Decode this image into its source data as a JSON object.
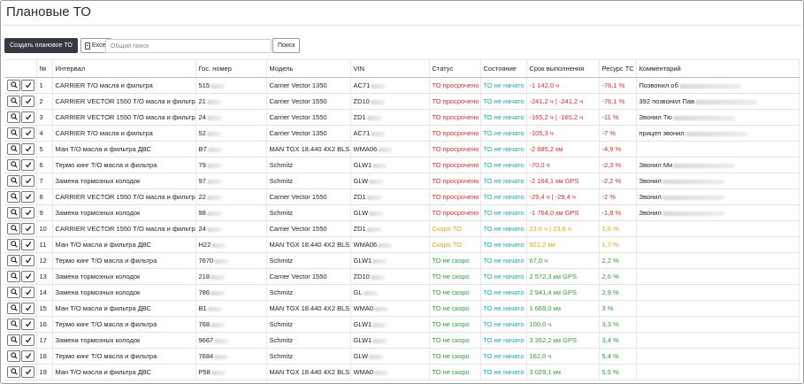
{
  "page": {
    "title": "Плановые ТО"
  },
  "toolbar": {
    "create_label": "Создать плановое ТО",
    "excel_label": "Excel",
    "search_placeholder": "Общий поиск",
    "search_button": "Поиск"
  },
  "table": {
    "headers": [
      "",
      "№",
      "Интервал",
      "Гос. номер",
      "Модель",
      "VIN",
      "Статус",
      "Состояние",
      "Срок выполнения",
      "Ресурс ТС",
      "Комментарий"
    ],
    "rows": [
      {
        "n": "1",
        "interval": "CARRIER Т/О масла и фильтра",
        "plate": "515",
        "model": "Carrier Vector 1350",
        "vin": "AC71",
        "status": "ТО просрочено",
        "status_color": "red",
        "state": "ТО не начато",
        "due": "-1 142,0 ч",
        "resource": "-76,1 %",
        "comment": "Позвонил об"
      },
      {
        "n": "2",
        "interval": "CARRIER VECTOR 1550 Т/О масла и фильтра",
        "plate": "21",
        "model": "Carrier Vector 1550",
        "vin": "ZD10",
        "status": "ТО просрочено",
        "status_color": "red",
        "state": "ТО не начато",
        "due": "-241,2 ч | -241,2 ч",
        "resource": "-76,1 %",
        "comment": "392 позвонил Пав"
      },
      {
        "n": "3",
        "interval": "CARRIER VECTOR 1550 Т/О масла и фильтра",
        "plate": "24",
        "model": "Carrier Vector 1550",
        "vin": "ZD1",
        "status": "ТО просрочено",
        "status_color": "red",
        "state": "ТО не начато",
        "due": "-165,2 ч | -165,2 ч",
        "resource": "-11 %",
        "comment": "Звонил Тю"
      },
      {
        "n": "4",
        "interval": "CARRIER Т/О масла и фильтра",
        "plate": "52",
        "model": "Carrier Vector 1350",
        "vin": "AC71",
        "status": "ТО просрочено",
        "status_color": "red",
        "state": "ТО не начато",
        "due": "-105,3 ч",
        "resource": "-7 %",
        "comment": "прицеп звонил"
      },
      {
        "n": "5",
        "interval": "Ман Т/О масла и фильтра ДВС",
        "plate": "В7",
        "model": "MAN TGX 18.440 4X2 BLS",
        "vin": "WMA06",
        "status": "ТО просрочено",
        "status_color": "red",
        "state": "ТО не начато",
        "due": "-2 685,2 км",
        "resource": "-4,9 %",
        "comment": ""
      },
      {
        "n": "6",
        "interval": "Термо кинг Т/О масла и фильтра",
        "plate": "79",
        "model": "Schmitz",
        "vin": "GLW1",
        "status": "ТО просрочено",
        "status_color": "red",
        "state": "ТО не начато",
        "due": "-70,0 ч",
        "resource": "-2,3 %",
        "comment": "Звонил Ми"
      },
      {
        "n": "7",
        "interval": "Замена тормозных колодок",
        "plate": "97",
        "model": "Schmitz",
        "vin": "GLW",
        "status": "ТО просрочено",
        "status_color": "red",
        "state": "ТО не начато",
        "due": "-2 164,1 км GPS",
        "resource": "-2,2 %",
        "comment": "Звонил"
      },
      {
        "n": "8",
        "interval": "CARRIER VECTOR 1550 Т/О масла и фильтра",
        "plate": "22",
        "model": "Carrier Vector 1550",
        "vin": "ZD1",
        "status": "ТО просрочено",
        "status_color": "red",
        "state": "ТО не начато",
        "due": "-29,4 ч | -29,4 ч",
        "resource": "-2 %",
        "comment": "Звонил"
      },
      {
        "n": "9",
        "interval": "Замена тормозных колодок",
        "plate": "98",
        "model": "Schmitz",
        "vin": "GLW",
        "status": "ТО просрочено",
        "status_color": "red",
        "state": "ТО не начато",
        "due": "-1 764,0 км GPS",
        "resource": "-1,8 %",
        "comment": "Звонил"
      },
      {
        "n": "10",
        "interval": "CARRIER VECTOR 1550 Т/О масла и фильтра",
        "plate": "24",
        "model": "Carrier Vector 1550",
        "vin": "ZD1",
        "status": "Скоро ТО",
        "status_color": "orange",
        "state": "ТО не начато",
        "due": "23,6 ч | 23,6 ч",
        "resource": "1,6 %",
        "comment": ""
      },
      {
        "n": "11",
        "interval": "Ман Т/О масла и фильтра ДВС",
        "plate": "Н22",
        "model": "MAN TGX 18.440 4X2 BLS",
        "vin": "WMA06",
        "status": "Скоро ТО",
        "status_color": "orange",
        "state": "ТО не начато",
        "due": "921,2 км",
        "resource": "1,7 %",
        "comment": ""
      },
      {
        "n": "12",
        "interval": "Термо кинг Т/О масла и фильтра",
        "plate": "7670",
        "model": "Schmitz",
        "vin": "GLW1",
        "status": "ТО не скоро",
        "status_color": "green",
        "state": "ТО не начато",
        "due": "67,0 ч",
        "resource": "2,2 %",
        "comment": ""
      },
      {
        "n": "13",
        "interval": "Замена тормозных колодок",
        "plate": "218",
        "model": "Carrier Vector 1550",
        "vin": "ZD10",
        "status": "ТО не скоро",
        "status_color": "green",
        "state": "ТО не начато",
        "due": "2 572,3 км GPS",
        "resource": "2,6 %",
        "comment": ""
      },
      {
        "n": "14",
        "interval": "Замена тормозных колодок",
        "plate": "786",
        "model": "Schmitz",
        "vin": "GL",
        "status": "ТО не скоро",
        "status_color": "green",
        "state": "ТО не начато",
        "due": "2 941,4 км GPS",
        "resource": "2,9 %",
        "comment": ""
      },
      {
        "n": "15",
        "interval": "Ман Т/О масла и фильтра ДВС",
        "plate": "В1",
        "model": "MAN TGX 18.440 4X2 BLS",
        "vin": "WMA0",
        "status": "ТО не скоро",
        "status_color": "green",
        "state": "ТО не начато",
        "due": "1 669,0 км",
        "resource": "3 %",
        "comment": ""
      },
      {
        "n": "16",
        "interval": "Термо кинг Т/О масла и фильтра",
        "plate": "768",
        "model": "Schmitz",
        "vin": "GLW1",
        "status": "ТО не скоро",
        "status_color": "green",
        "state": "ТО не начато",
        "due": "100,0 ч",
        "resource": "3,3 %",
        "comment": ""
      },
      {
        "n": "17",
        "interval": "Замена тормозных колодок",
        "plate": "9667",
        "model": "Schmitz",
        "vin": "GLW1",
        "status": "ТО не скоро",
        "status_color": "green",
        "state": "ТО не начато",
        "due": "3 352,2 км GPS",
        "resource": "3,4 %",
        "comment": ""
      },
      {
        "n": "18",
        "interval": "Термо кинг Т/О масла и фильтра",
        "plate": "7684",
        "model": "Schmitz",
        "vin": "GLW",
        "status": "ТО не скоро",
        "status_color": "green",
        "state": "ТО не начато",
        "due": "162,0 ч",
        "resource": "5,4 %",
        "comment": ""
      },
      {
        "n": "19",
        "interval": "Ман Т/О масла и фильтра ДВС",
        "plate": "Р58",
        "model": "MAN TGX 18.440 4X2 BLS",
        "vin": "WMA0",
        "status": "ТО не скоро",
        "status_color": "green",
        "state": "ТО не начато",
        "due": "3 029,1 км",
        "resource": "5,5 %",
        "comment": ""
      }
    ]
  },
  "colors": {
    "red": "#d32f2f",
    "orange": "#e3a21a",
    "green": "#2e9e3e",
    "teal": "#18a6b5",
    "dark_button": "#343a40"
  },
  "icons": {
    "view": "search-icon",
    "done": "check-icon",
    "excel": "excel-file-icon"
  }
}
